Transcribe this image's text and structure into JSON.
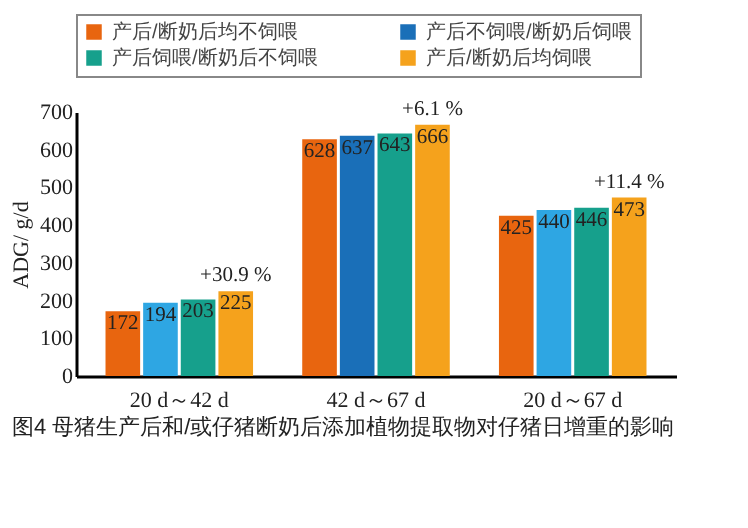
{
  "chart_data": {
    "type": "bar",
    "title": "图4 母猪生产后和/或仔猪断奶后添加植物提取物对仔猪日增重的影响",
    "ylabel": "ADG/ g/d",
    "categories": [
      "20 d～42 d",
      "42 d～67 d",
      "20 d～67 d"
    ],
    "series": [
      {
        "name": "产后/断奶后均不饲喂",
        "color": "#e8650f",
        "values": [
          172,
          628,
          425
        ]
      },
      {
        "name": "产后不饲喂/断奶后饲喂",
        "color": "#1a6fb8",
        "colors": [
          "#2ea6e3",
          "#1a6fb8",
          "#2ea6e3"
        ],
        "values": [
          194,
          637,
          440
        ]
      },
      {
        "name": "产后饲喂/断奶后不饲喂",
        "color": "#16a08c",
        "values": [
          203,
          643,
          446
        ]
      },
      {
        "name": "产后/断奶后均饲喂",
        "color": "#f5a21c",
        "values": [
          225,
          666,
          473
        ]
      }
    ],
    "ylim": [
      0,
      700
    ],
    "yticks": [
      0,
      100,
      200,
      300,
      400,
      500,
      600,
      700
    ],
    "grid": false,
    "legend": "top",
    "data_labels": true,
    "annotations": [
      {
        "text": "+30.9 %",
        "x": "20 d～42 d",
        "y": 225
      },
      {
        "text": "+6.1 %",
        "x": "42 d～67 d",
        "y": 666
      },
      {
        "text": "+11.4 %",
        "x": "20 d～67 d",
        "y": 473
      }
    ]
  }
}
